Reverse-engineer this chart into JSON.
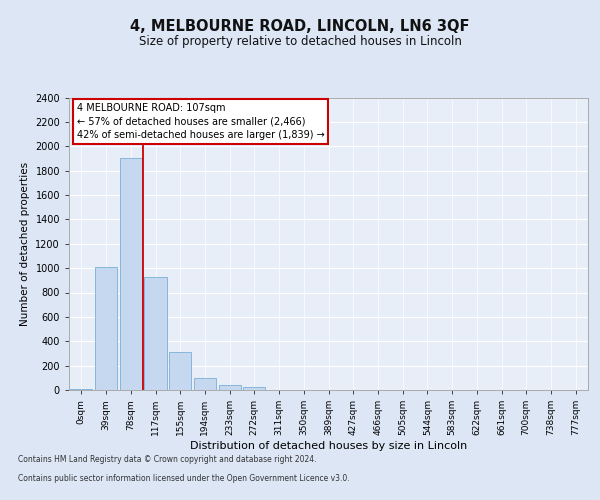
{
  "title": "4, MELBOURNE ROAD, LINCOLN, LN6 3QF",
  "subtitle": "Size of property relative to detached houses in Lincoln",
  "xlabel": "Distribution of detached houses by size in Lincoln",
  "ylabel": "Number of detached properties",
  "categories": [
    "0sqm",
    "39sqm",
    "78sqm",
    "117sqm",
    "155sqm",
    "194sqm",
    "233sqm",
    "272sqm",
    "311sqm",
    "350sqm",
    "389sqm",
    "427sqm",
    "466sqm",
    "505sqm",
    "544sqm",
    "583sqm",
    "622sqm",
    "661sqm",
    "700sqm",
    "738sqm",
    "777sqm"
  ],
  "values": [
    10,
    1010,
    1900,
    930,
    310,
    100,
    45,
    25,
    0,
    0,
    0,
    0,
    0,
    0,
    0,
    0,
    0,
    0,
    0,
    0,
    0
  ],
  "bar_color": "#c5d8f0",
  "bar_edge_color": "#7bafd4",
  "red_line_x": 2.5,
  "ylim": [
    0,
    2400
  ],
  "yticks": [
    0,
    200,
    400,
    600,
    800,
    1000,
    1200,
    1400,
    1600,
    1800,
    2000,
    2200,
    2400
  ],
  "annotation_text": "4 MELBOURNE ROAD: 107sqm\n← 57% of detached houses are smaller (2,466)\n42% of semi-detached houses are larger (1,839) →",
  "annotation_box_color": "#ffffff",
  "annotation_box_edge_color": "#cc0000",
  "footer_line1": "Contains HM Land Registry data © Crown copyright and database right 2024.",
  "footer_line2": "Contains public sector information licensed under the Open Government Licence v3.0.",
  "bg_color": "#dce6f5",
  "plot_bg_color": "#e8eef8",
  "title_fontsize": 10.5,
  "subtitle_fontsize": 8.5,
  "red_line_color": "#cc0000",
  "grid_color": "#ffffff"
}
